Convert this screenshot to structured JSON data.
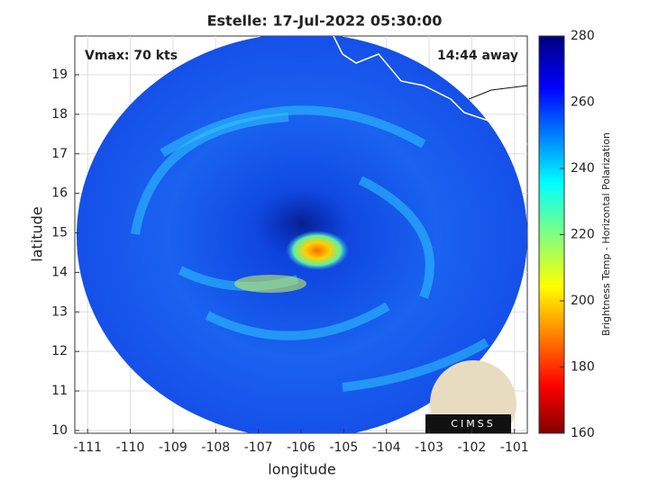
{
  "chart_data": {
    "type": "image",
    "title": "Estelle: 17-Jul-2022 05:30:00",
    "xlabel": "longitude",
    "ylabel": "latitude",
    "annotations": [
      "Vmax: 70 kts",
      "14:44 away"
    ],
    "logo": "CIMSS",
    "xlim": [
      -111.3,
      -100.7
    ],
    "xticks": [
      -111,
      -110,
      -109,
      -108,
      -107,
      -106,
      -105,
      -104,
      -103,
      -102,
      -101
    ],
    "ylim": [
      9.93,
      19.98
    ],
    "yticks": [
      10,
      11,
      12,
      13,
      14,
      15,
      16,
      17,
      18,
      19
    ],
    "grid": true,
    "colorbar": {
      "label": "Brightness Temp - Horizontal Polarization",
      "lim": [
        160,
        280
      ],
      "ticks": [
        160,
        180,
        200,
        220,
        240,
        260,
        280
      ]
    }
  }
}
